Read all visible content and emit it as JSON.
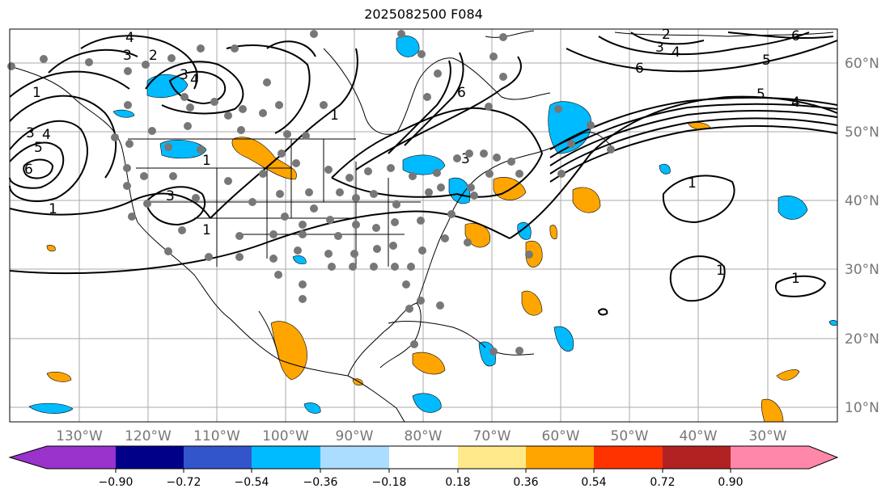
{
  "title": "2025082500 F084",
  "map": {
    "lat_labels": [
      "60°N",
      "50°N",
      "40°N",
      "30°N",
      "20°N",
      "10°N"
    ],
    "lon_labels": [
      "130°W",
      "120°W",
      "110°W",
      "100°W",
      "90°W",
      "80°W",
      "70°W",
      "60°W",
      "50°W",
      "40°W",
      "30°W"
    ],
    "grid": true,
    "contour_labels": [
      "1",
      "2",
      "3",
      "4",
      "5",
      "6"
    ]
  },
  "colorbar": {
    "ticks": [
      "−0.90",
      "−0.72",
      "−0.54",
      "−0.36",
      "−0.18",
      "0.18",
      "0.36",
      "0.54",
      "0.72",
      "0.90"
    ],
    "colors": [
      "#9933cc",
      "#000088",
      "#3355cc",
      "#00bbff",
      "#aaddff",
      "#ffffff",
      "#ffe98a",
      "#ffa500",
      "#ff3300",
      "#b22222",
      "#ff88aa"
    ]
  }
}
